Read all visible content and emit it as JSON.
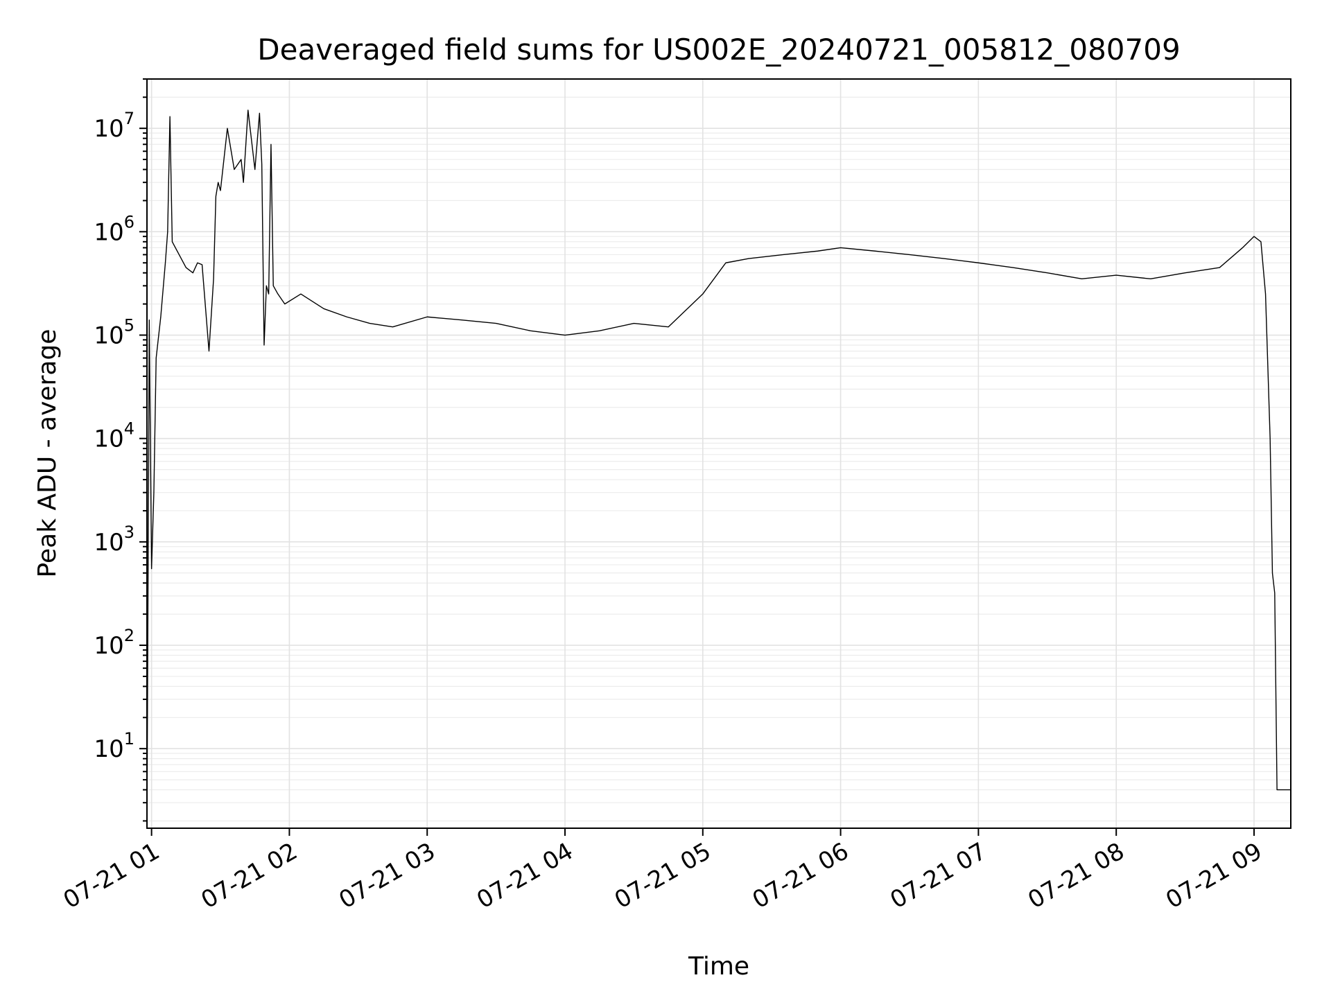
{
  "chart_data": {
    "type": "line",
    "title": "Deaveraged field sums for US002E_20240721_005812_080709",
    "xlabel": "Time",
    "ylabel": "Peak ADU - average",
    "yscale": "log",
    "grid": true,
    "grid_minor": true,
    "line_color": "#000000",
    "xlim": [
      "2024-07-21 00:58",
      "2024-07-21 09:16"
    ],
    "ylim": [
      1.7,
      30000000
    ],
    "x_ticks": [
      {
        "t": "2024-07-21 01:00",
        "label": "07-21 01"
      },
      {
        "t": "2024-07-21 02:00",
        "label": "07-21 02"
      },
      {
        "t": "2024-07-21 03:00",
        "label": "07-21 03"
      },
      {
        "t": "2024-07-21 04:00",
        "label": "07-21 04"
      },
      {
        "t": "2024-07-21 05:00",
        "label": "07-21 05"
      },
      {
        "t": "2024-07-21 06:00",
        "label": "07-21 06"
      },
      {
        "t": "2024-07-21 07:00",
        "label": "07-21 07"
      },
      {
        "t": "2024-07-21 08:00",
        "label": "07-21 08"
      },
      {
        "t": "2024-07-21 09:00",
        "label": "07-21 09"
      }
    ],
    "y_ticks": [
      {
        "value": 10,
        "base": "10",
        "exp": "1"
      },
      {
        "value": 100,
        "base": "10",
        "exp": "2"
      },
      {
        "value": 1000,
        "base": "10",
        "exp": "3"
      },
      {
        "value": 10000,
        "base": "10",
        "exp": "4"
      },
      {
        "value": 100000,
        "base": "10",
        "exp": "5"
      },
      {
        "value": 1000000,
        "base": "10",
        "exp": "6"
      },
      {
        "value": 10000000,
        "base": "10",
        "exp": "7"
      }
    ],
    "series": [
      {
        "x": [
          "2024-07-21 00:58",
          "2024-07-21 00:59",
          "2024-07-21 01:00",
          "2024-07-21 01:01",
          "2024-07-21 01:02",
          "2024-07-21 01:04",
          "2024-07-21 01:06",
          "2024-07-21 01:07",
          "2024-07-21 01:08",
          "2024-07-21 01:09",
          "2024-07-21 01:12",
          "2024-07-21 01:15",
          "2024-07-21 01:18",
          "2024-07-21 01:20",
          "2024-07-21 01:22",
          "2024-07-21 01:25",
          "2024-07-21 01:27",
          "2024-07-21 01:28",
          "2024-07-21 01:29",
          "2024-07-21 01:30",
          "2024-07-21 01:33",
          "2024-07-21 01:36",
          "2024-07-21 01:39",
          "2024-07-21 01:40",
          "2024-07-21 01:42",
          "2024-07-21 01:45",
          "2024-07-21 01:47",
          "2024-07-21 01:48",
          "2024-07-21 01:49",
          "2024-07-21 01:50",
          "2024-07-21 01:51",
          "2024-07-21 01:52",
          "2024-07-21 01:53",
          "2024-07-21 01:55",
          "2024-07-21 01:58",
          "2024-07-21 02:05",
          "2024-07-21 02:15",
          "2024-07-21 02:25",
          "2024-07-21 02:35",
          "2024-07-21 02:45",
          "2024-07-21 03:00",
          "2024-07-21 03:15",
          "2024-07-21 03:30",
          "2024-07-21 03:45",
          "2024-07-21 04:00",
          "2024-07-21 04:15",
          "2024-07-21 04:30",
          "2024-07-21 04:45",
          "2024-07-21 05:00",
          "2024-07-21 05:10",
          "2024-07-21 05:20",
          "2024-07-21 05:35",
          "2024-07-21 05:50",
          "2024-07-21 06:00",
          "2024-07-21 06:15",
          "2024-07-21 06:30",
          "2024-07-21 06:45",
          "2024-07-21 07:00",
          "2024-07-21 07:15",
          "2024-07-21 07:30",
          "2024-07-21 07:45",
          "2024-07-21 08:00",
          "2024-07-21 08:15",
          "2024-07-21 08:30",
          "2024-07-21 08:45",
          "2024-07-21 08:55",
          "2024-07-21 09:00",
          "2024-07-21 09:03",
          "2024-07-21 09:05",
          "2024-07-21 09:07",
          "2024-07-21 09:08",
          "2024-07-21 09:09",
          "2024-07-21 09:10",
          "2024-07-21 09:16"
        ],
        "y": [
          1.8,
          140000,
          550,
          3000,
          60000,
          150000,
          500000,
          1000000,
          13000000,
          800000,
          600000,
          450000,
          400000,
          500000,
          480000,
          70000,
          350000,
          2200000,
          3000000,
          2500000,
          10000000,
          4000000,
          5000000,
          3000000,
          15000000,
          4000000,
          14000000,
          4500000,
          80000,
          300000,
          250000,
          7000000,
          300000,
          250000,
          200000,
          250000,
          180000,
          150000,
          130000,
          120000,
          150000,
          140000,
          130000,
          110000,
          100000,
          110000,
          130000,
          120000,
          250000,
          500000,
          550000,
          600000,
          650000,
          700000,
          650000,
          600000,
          550000,
          500000,
          450000,
          400000,
          350000,
          380000,
          350000,
          400000,
          450000,
          700000,
          900000,
          800000,
          250000,
          10000,
          500,
          320,
          4,
          4
        ]
      }
    ]
  }
}
